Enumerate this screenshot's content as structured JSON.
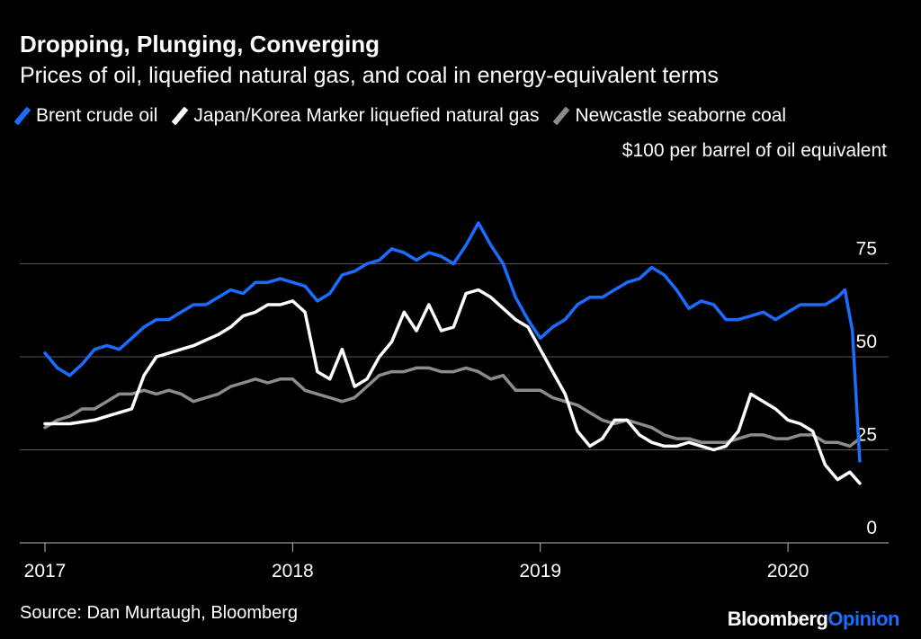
{
  "chart_data": {
    "type": "line",
    "title": "Dropping, Plunging, Converging",
    "subtitle": "Prices of oil, liquefied natural gas, and coal in energy-equivalent terms",
    "unit_label": "$100 per barrel of oil equivalent",
    "ylim": [
      0,
      100
    ],
    "y_ticks": [
      0,
      25,
      50,
      75
    ],
    "y_tick_labels": [
      "0",
      "25",
      "50",
      "75"
    ],
    "xlim": [
      2017.0,
      2020.45
    ],
    "x_ticks": [
      2017,
      2018,
      2019,
      2020
    ],
    "x_tick_labels": [
      "2017",
      "2018",
      "2019",
      "2020"
    ],
    "grid": true,
    "legend_position": "top-left",
    "series": [
      {
        "name": "Brent crude oil",
        "color": "#1a6dff",
        "x": [
          2017.0,
          2017.05,
          2017.1,
          2017.15,
          2017.2,
          2017.25,
          2017.3,
          2017.35,
          2017.4,
          2017.45,
          2017.5,
          2017.55,
          2017.6,
          2017.65,
          2017.7,
          2017.75,
          2017.8,
          2017.85,
          2017.9,
          2017.95,
          2018.0,
          2018.05,
          2018.1,
          2018.15,
          2018.2,
          2018.25,
          2018.3,
          2018.35,
          2018.4,
          2018.45,
          2018.5,
          2018.55,
          2018.6,
          2018.65,
          2018.7,
          2018.75,
          2018.8,
          2018.85,
          2018.9,
          2018.95,
          2019.0,
          2019.05,
          2019.1,
          2019.15,
          2019.2,
          2019.25,
          2019.3,
          2019.35,
          2019.4,
          2019.45,
          2019.5,
          2019.55,
          2019.6,
          2019.65,
          2019.7,
          2019.75,
          2019.8,
          2019.85,
          2019.9,
          2019.95,
          2020.0,
          2020.05,
          2020.1,
          2020.15,
          2020.2,
          2020.23,
          2020.26,
          2020.29
        ],
        "values": [
          51,
          47,
          45,
          48,
          52,
          53,
          52,
          55,
          58,
          60,
          60,
          62,
          64,
          64,
          66,
          68,
          67,
          70,
          70,
          71,
          70,
          69,
          65,
          67,
          72,
          73,
          75,
          76,
          79,
          78,
          76,
          78,
          77,
          75,
          80,
          86,
          80,
          75,
          66,
          60,
          55,
          58,
          60,
          64,
          66,
          66,
          68,
          70,
          71,
          74,
          72,
          68,
          63,
          65,
          64,
          60,
          60,
          61,
          62,
          60,
          62,
          64,
          64,
          64,
          66,
          68,
          57,
          22
        ],
        "annotations_note": null
      },
      {
        "name": "Japan/Korea Marker liquefied natural gas",
        "color": "#ffffff",
        "x": [
          2017.0,
          2017.1,
          2017.2,
          2017.25,
          2017.3,
          2017.35,
          2017.4,
          2017.45,
          2017.5,
          2017.55,
          2017.6,
          2017.7,
          2017.75,
          2017.8,
          2017.85,
          2017.9,
          2017.95,
          2018.0,
          2018.05,
          2018.1,
          2018.15,
          2018.2,
          2018.25,
          2018.3,
          2018.35,
          2018.4,
          2018.45,
          2018.5,
          2018.55,
          2018.6,
          2018.65,
          2018.7,
          2018.75,
          2018.8,
          2018.85,
          2018.9,
          2018.95,
          2019.0,
          2019.05,
          2019.1,
          2019.15,
          2019.2,
          2019.25,
          2019.3,
          2019.35,
          2019.4,
          2019.45,
          2019.5,
          2019.55,
          2019.6,
          2019.65,
          2019.7,
          2019.75,
          2019.8,
          2019.85,
          2019.9,
          2019.95,
          2020.0,
          2020.05,
          2020.1,
          2020.15,
          2020.2,
          2020.25,
          2020.29
        ],
        "values": [
          32,
          32,
          33,
          34,
          35,
          36,
          45,
          50,
          51,
          52,
          53,
          56,
          58,
          61,
          62,
          64,
          64,
          65,
          62,
          46,
          44,
          52,
          42,
          44,
          50,
          54,
          62,
          57,
          64,
          57,
          58,
          67,
          68,
          66,
          63,
          60,
          58,
          52,
          46,
          40,
          30,
          26,
          28,
          33,
          33,
          29,
          27,
          26,
          26,
          27,
          26,
          25,
          26,
          30,
          40,
          38,
          36,
          33,
          32,
          30,
          21,
          17,
          19,
          16
        ],
        "annotations_note": null
      },
      {
        "name": "Newcastle seaborne coal",
        "color": "#8c8c8c",
        "x": [
          2017.0,
          2017.05,
          2017.1,
          2017.15,
          2017.2,
          2017.25,
          2017.3,
          2017.35,
          2017.4,
          2017.45,
          2017.5,
          2017.55,
          2017.6,
          2017.65,
          2017.7,
          2017.75,
          2017.8,
          2017.85,
          2017.9,
          2017.95,
          2018.0,
          2018.05,
          2018.1,
          2018.15,
          2018.2,
          2018.25,
          2018.3,
          2018.35,
          2018.4,
          2018.45,
          2018.5,
          2018.55,
          2018.6,
          2018.65,
          2018.7,
          2018.75,
          2018.8,
          2018.85,
          2018.9,
          2018.95,
          2019.0,
          2019.05,
          2019.1,
          2019.15,
          2019.2,
          2019.25,
          2019.3,
          2019.35,
          2019.4,
          2019.45,
          2019.5,
          2019.55,
          2019.6,
          2019.65,
          2019.7,
          2019.75,
          2019.8,
          2019.85,
          2019.9,
          2019.95,
          2020.0,
          2020.05,
          2020.1,
          2020.15,
          2020.2,
          2020.25,
          2020.29
        ],
        "values": [
          31,
          33,
          34,
          36,
          36,
          38,
          40,
          40,
          41,
          40,
          41,
          40,
          38,
          39,
          40,
          42,
          43,
          44,
          43,
          44,
          44,
          41,
          40,
          39,
          38,
          39,
          42,
          45,
          46,
          46,
          47,
          47,
          46,
          46,
          47,
          46,
          44,
          45,
          41,
          41,
          41,
          39,
          38,
          37,
          35,
          33,
          32,
          33,
          32,
          31,
          29,
          28,
          28,
          27,
          27,
          27,
          28,
          29,
          29,
          28,
          28,
          29,
          29,
          27,
          27,
          26,
          28
        ],
        "annotations_note": null
      }
    ]
  },
  "legend": [
    {
      "label": "Brent crude oil",
      "color": "#1a6dff"
    },
    {
      "label": "Japan/Korea Marker liquefied natural gas",
      "color": "#ffffff"
    },
    {
      "label": "Newcastle seaborne coal",
      "color": "#8c8c8c"
    }
  ],
  "footer": {
    "source": "Source: Dan Murtaugh, Bloomberg",
    "brand_part1": "Bloomberg",
    "brand_part2": "Opinion"
  }
}
